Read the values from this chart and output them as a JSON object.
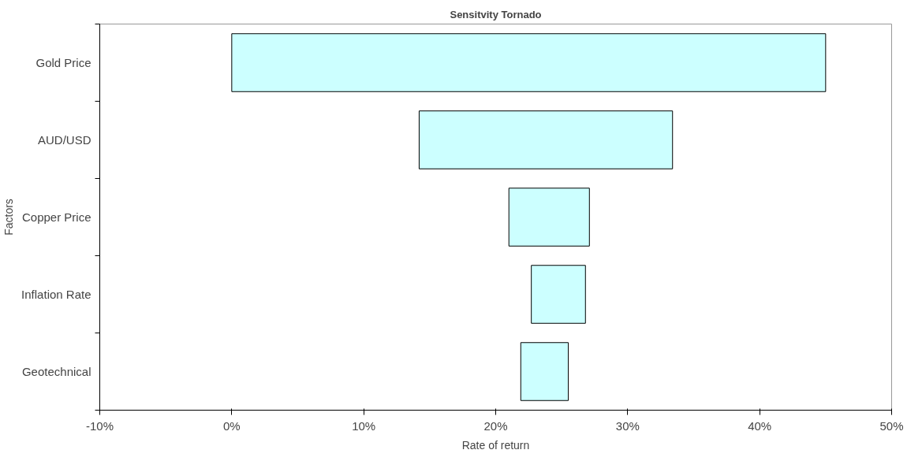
{
  "chart_data": {
    "type": "bar",
    "orientation": "horizontal",
    "title": "Sensitvity Tornado",
    "xlabel": "Rate of return",
    "ylabel": "Factors",
    "categories": [
      "Gold Price",
      "AUD/USD",
      "Copper Price",
      "Inflation Rate",
      "Geotechnical"
    ],
    "base": [
      0,
      14.2,
      21.0,
      22.7,
      21.9
    ],
    "values": [
      45.0,
      19.2,
      6.1,
      4.1,
      3.6
    ],
    "color": "#ccffff",
    "xlim": [
      -10,
      50
    ],
    "xticks": [
      {
        "value": -10,
        "label": "-10%"
      },
      {
        "value": 0,
        "label": "0%"
      },
      {
        "value": 10,
        "label": "10%"
      },
      {
        "value": 20,
        "label": "20%"
      },
      {
        "value": 30,
        "label": "30%"
      },
      {
        "value": 40,
        "label": "40%"
      },
      {
        "value": 50,
        "label": "50%"
      }
    ],
    "grid": false
  }
}
